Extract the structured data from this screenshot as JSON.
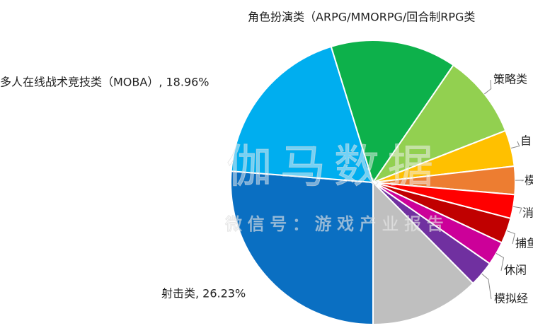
{
  "chart_data": {
    "type": "pie",
    "labels": [
      "射击类, 26.23%",
      "多人在线战术竞技类（MOBA）, 18.96%",
      "角色扮演类（ARPG/MMORPG/回合制RPG类",
      "策略类",
      "自",
      "模",
      "消",
      "捕鱼",
      "休闲",
      "模拟经",
      null
    ],
    "values": [
      26.23,
      18.96,
      14.3,
      9.5,
      4.1,
      3.2,
      2.7,
      2.9,
      2.7,
      2.9,
      12.4
    ],
    "colors": [
      "#0a6fc2",
      "#00aeef",
      "#0db14b",
      "#92d050",
      "#ffc000",
      "#ed7d31",
      "#ff0000",
      "#c00000",
      "#cc0099",
      "#7030a0",
      "#bfbfbf"
    ],
    "start_angle": 180,
    "watermark": "伽马数据",
    "watermark_sub": "微 信 号 ： 游 戏 产 业 报 告"
  }
}
